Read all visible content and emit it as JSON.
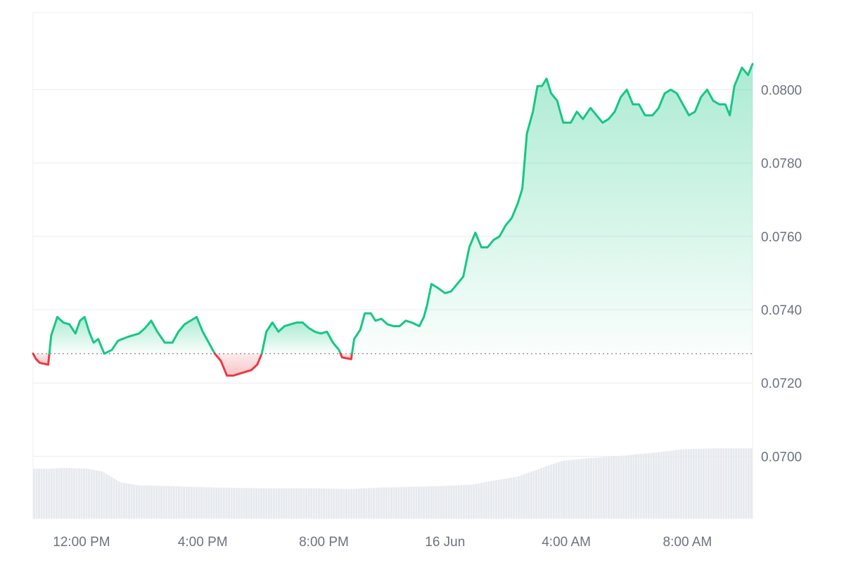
{
  "chart_data": {
    "type": "line",
    "title": "",
    "xlabel": "",
    "ylabel": "",
    "baseline": 0.0728,
    "ylim": [
      0.0683,
      0.0821
    ],
    "grid": true,
    "legend": "none",
    "colors": {
      "up": "#16c784",
      "down": "#ea3943",
      "grid": "#ececec",
      "volume": "#e6e9ee",
      "baseline": "#8a8f98",
      "axis_text": "#6b7280"
    },
    "x_ticks": [
      {
        "label": "12:00 PM",
        "t": 1.6
      },
      {
        "label": "4:00 PM",
        "t": 5.6
      },
      {
        "label": "8:00 PM",
        "t": 9.6
      },
      {
        "label": "16 Jun",
        "t": 13.6
      },
      {
        "label": "4:00 AM",
        "t": 17.6
      },
      {
        "label": "8:00 AM",
        "t": 21.6
      }
    ],
    "y_ticks": [
      {
        "label": "0.0800",
        "value": 0.08
      },
      {
        "label": "0.0780",
        "value": 0.078
      },
      {
        "label": "0.0760",
        "value": 0.076
      },
      {
        "label": "0.0740",
        "value": 0.074
      },
      {
        "label": "0.0720",
        "value": 0.072
      },
      {
        "label": "0.0700",
        "value": 0.07
      }
    ],
    "series": [
      {
        "values": [
          [
            0.0,
            0.0728
          ],
          [
            0.1,
            0.07265
          ],
          [
            0.22,
            0.07255
          ],
          [
            0.5,
            0.0725
          ],
          [
            0.6,
            0.0733
          ],
          [
            0.8,
            0.0738
          ],
          [
            1.0,
            0.07365
          ],
          [
            1.2,
            0.0736
          ],
          [
            1.4,
            0.07335
          ],
          [
            1.55,
            0.0737
          ],
          [
            1.7,
            0.0738
          ],
          [
            1.85,
            0.0734
          ],
          [
            2.0,
            0.0731
          ],
          [
            2.15,
            0.0732
          ],
          [
            2.35,
            0.0728
          ],
          [
            2.6,
            0.0729
          ],
          [
            2.8,
            0.07315
          ],
          [
            3.1,
            0.07325
          ],
          [
            3.3,
            0.0733
          ],
          [
            3.5,
            0.07335
          ],
          [
            3.7,
            0.0735
          ],
          [
            3.9,
            0.0737
          ],
          [
            4.1,
            0.0734
          ],
          [
            4.35,
            0.0731
          ],
          [
            4.6,
            0.0731
          ],
          [
            4.8,
            0.0734
          ],
          [
            5.0,
            0.0736
          ],
          [
            5.2,
            0.0737
          ],
          [
            5.4,
            0.0738
          ],
          [
            5.6,
            0.0734
          ],
          [
            5.8,
            0.0731
          ],
          [
            6.0,
            0.0728
          ],
          [
            6.2,
            0.0726
          ],
          [
            6.4,
            0.0722
          ],
          [
            6.6,
            0.0722
          ],
          [
            6.8,
            0.07225
          ],
          [
            7.0,
            0.0723
          ],
          [
            7.2,
            0.07235
          ],
          [
            7.4,
            0.0725
          ],
          [
            7.55,
            0.0728
          ],
          [
            7.7,
            0.0734
          ],
          [
            7.9,
            0.07365
          ],
          [
            8.1,
            0.0734
          ],
          [
            8.3,
            0.07355
          ],
          [
            8.5,
            0.0736
          ],
          [
            8.7,
            0.07365
          ],
          [
            8.9,
            0.07365
          ],
          [
            9.1,
            0.0735
          ],
          [
            9.3,
            0.0734
          ],
          [
            9.5,
            0.07335
          ],
          [
            9.7,
            0.0734
          ],
          [
            9.9,
            0.0731
          ],
          [
            10.1,
            0.0729
          ],
          [
            10.2,
            0.0727
          ],
          [
            10.5,
            0.07265
          ],
          [
            10.6,
            0.0732
          ],
          [
            10.8,
            0.07345
          ],
          [
            10.95,
            0.0739
          ],
          [
            11.15,
            0.0739
          ],
          [
            11.3,
            0.0737
          ],
          [
            11.5,
            0.07375
          ],
          [
            11.7,
            0.0736
          ],
          [
            11.9,
            0.07355
          ],
          [
            12.1,
            0.07355
          ],
          [
            12.3,
            0.0737
          ],
          [
            12.5,
            0.07365
          ],
          [
            12.75,
            0.07355
          ],
          [
            12.9,
            0.0738
          ],
          [
            13.0,
            0.0741
          ],
          [
            13.15,
            0.0747
          ],
          [
            13.35,
            0.0746
          ],
          [
            13.6,
            0.07445
          ],
          [
            13.8,
            0.0745
          ],
          [
            14.0,
            0.0747
          ],
          [
            14.2,
            0.0749
          ],
          [
            14.4,
            0.0757
          ],
          [
            14.6,
            0.0761
          ],
          [
            14.8,
            0.0757
          ],
          [
            15.0,
            0.0757
          ],
          [
            15.2,
            0.0759
          ],
          [
            15.4,
            0.076
          ],
          [
            15.6,
            0.0763
          ],
          [
            15.8,
            0.0765
          ],
          [
            16.0,
            0.0769
          ],
          [
            16.15,
            0.0773
          ],
          [
            16.3,
            0.0788
          ],
          [
            16.5,
            0.0794
          ],
          [
            16.65,
            0.0801
          ],
          [
            16.8,
            0.0801
          ],
          [
            16.95,
            0.0803
          ],
          [
            17.1,
            0.0799
          ],
          [
            17.3,
            0.0797
          ],
          [
            17.5,
            0.0791
          ],
          [
            17.75,
            0.0791
          ],
          [
            17.95,
            0.0794
          ],
          [
            18.15,
            0.0792
          ],
          [
            18.4,
            0.0795
          ],
          [
            18.6,
            0.0793
          ],
          [
            18.8,
            0.0791
          ],
          [
            19.0,
            0.0792
          ],
          [
            19.2,
            0.0794
          ],
          [
            19.4,
            0.0798
          ],
          [
            19.6,
            0.08
          ],
          [
            19.8,
            0.0796
          ],
          [
            20.0,
            0.0796
          ],
          [
            20.2,
            0.0793
          ],
          [
            20.45,
            0.0793
          ],
          [
            20.65,
            0.0795
          ],
          [
            20.85,
            0.0799
          ],
          [
            21.05,
            0.08
          ],
          [
            21.25,
            0.0799
          ],
          [
            21.45,
            0.0796
          ],
          [
            21.65,
            0.0793
          ],
          [
            21.85,
            0.0794
          ],
          [
            22.05,
            0.0798
          ],
          [
            22.25,
            0.08
          ],
          [
            22.45,
            0.0797
          ],
          [
            22.65,
            0.0796
          ],
          [
            22.85,
            0.0796
          ],
          [
            23.0,
            0.0793
          ],
          [
            23.15,
            0.0801
          ],
          [
            23.4,
            0.0806
          ],
          [
            23.6,
            0.0804
          ],
          [
            23.75,
            0.0807
          ]
        ]
      },
      {
        "values": [
          [
            0.0,
            0.69
          ],
          [
            0.6,
            0.69
          ],
          [
            1.0,
            0.7
          ],
          [
            1.8,
            0.69
          ],
          [
            2.3,
            0.65
          ],
          [
            2.9,
            0.5
          ],
          [
            3.5,
            0.46
          ],
          [
            4.5,
            0.45
          ],
          [
            6.0,
            0.43
          ],
          [
            7.5,
            0.42
          ],
          [
            9.0,
            0.42
          ],
          [
            10.5,
            0.41
          ],
          [
            11.5,
            0.43
          ],
          [
            12.5,
            0.44
          ],
          [
            13.5,
            0.45
          ],
          [
            14.5,
            0.47
          ],
          [
            15.0,
            0.51
          ],
          [
            16.0,
            0.58
          ],
          [
            17.0,
            0.73
          ],
          [
            17.5,
            0.8
          ],
          [
            18.5,
            0.84
          ],
          [
            19.5,
            0.87
          ],
          [
            20.5,
            0.91
          ],
          [
            21.5,
            0.96
          ],
          [
            22.5,
            0.97
          ],
          [
            23.75,
            0.97
          ]
        ]
      }
    ]
  }
}
